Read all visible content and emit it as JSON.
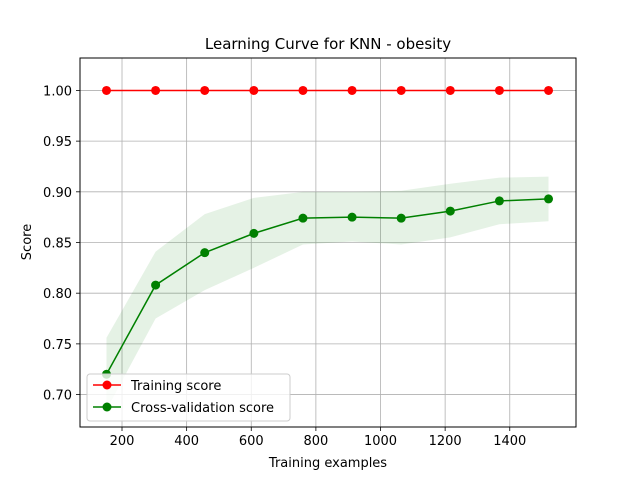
{
  "chart_data": {
    "type": "line",
    "title": "Learning Curve for KNN - obesity",
    "xlabel": "Training examples",
    "ylabel": "Score",
    "xlim": [
      70,
      1605
    ],
    "ylim": [
      0.668,
      1.032
    ],
    "xticks": [
      200,
      400,
      600,
      800,
      1000,
      1200,
      1400
    ],
    "xtick_labels": [
      "200",
      "400",
      "600",
      "800",
      "1000",
      "1200",
      "1400"
    ],
    "yticks": [
      0.7,
      0.75,
      0.8,
      0.85,
      0.9,
      0.95,
      1.0
    ],
    "ytick_labels": [
      "0.70",
      "0.75",
      "0.80",
      "0.85",
      "0.90",
      "0.95",
      "1.00"
    ],
    "grid": true,
    "legend_position": "lower left",
    "x": [
      152,
      304,
      456,
      608,
      760,
      912,
      1064,
      1216,
      1368,
      1520
    ],
    "series": [
      {
        "name": "Training score",
        "color": "#ff0000",
        "values": [
          1.0,
          1.0,
          1.0,
          1.0,
          1.0,
          1.0,
          1.0,
          1.0,
          1.0,
          1.0
        ],
        "std_low": [
          1.0,
          1.0,
          1.0,
          1.0,
          1.0,
          1.0,
          1.0,
          1.0,
          1.0,
          1.0
        ],
        "std_high": [
          1.0,
          1.0,
          1.0,
          1.0,
          1.0,
          1.0,
          1.0,
          1.0,
          1.0,
          1.0
        ]
      },
      {
        "name": "Cross-validation score",
        "color": "#008000",
        "values": [
          0.72,
          0.808,
          0.84,
          0.859,
          0.874,
          0.875,
          0.874,
          0.881,
          0.891,
          0.893
        ],
        "std_low": [
          0.685,
          0.775,
          0.803,
          0.825,
          0.848,
          0.851,
          0.848,
          0.855,
          0.868,
          0.871
        ],
        "std_high": [
          0.756,
          0.841,
          0.878,
          0.894,
          0.9,
          0.9,
          0.901,
          0.908,
          0.914,
          0.915
        ]
      }
    ]
  }
}
